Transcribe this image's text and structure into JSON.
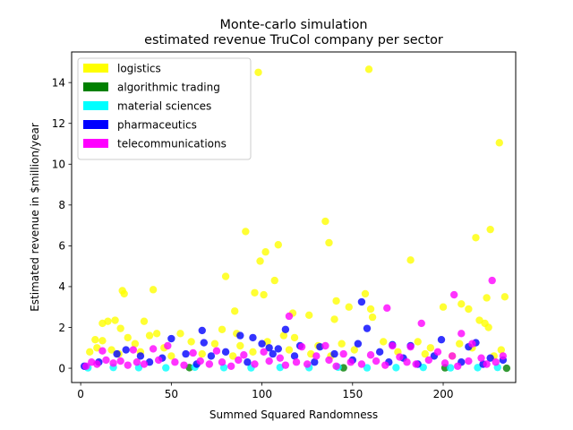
{
  "chart_data": {
    "type": "scatter",
    "title_line1": "Monte-carlo simulation",
    "title_line2": "estimated revenue TruCol company per sector",
    "xlabel": "Summed Squared Randomness",
    "ylabel": "Estimated revenue in $million/year",
    "xlim": [
      -5,
      240
    ],
    "ylim": [
      -0.7,
      15.5
    ],
    "xticks": [
      0,
      50,
      100,
      150,
      200
    ],
    "yticks": [
      0,
      2,
      4,
      6,
      8,
      10,
      12,
      14
    ],
    "legend_position": "upper left",
    "grid": false,
    "marker_alpha": 0.8,
    "series": [
      {
        "name": "logistics",
        "color": "#ffff00",
        "points": [
          [
            98,
            14.5
          ],
          [
            159,
            14.65
          ],
          [
            231,
            11.05
          ],
          [
            135,
            7.2
          ],
          [
            137,
            6.15
          ],
          [
            99,
            5.25
          ],
          [
            102,
            5.7
          ],
          [
            91,
            6.7
          ],
          [
            109,
            6.05
          ],
          [
            218,
            6.4
          ],
          [
            226,
            6.8
          ],
          [
            182,
            5.3
          ],
          [
            80,
            4.5
          ],
          [
            107,
            4.3
          ],
          [
            23,
            3.8
          ],
          [
            24,
            3.65
          ],
          [
            40,
            3.85
          ],
          [
            96,
            3.7
          ],
          [
            101,
            3.6
          ],
          [
            157,
            3.65
          ],
          [
            141,
            3.3
          ],
          [
            234,
            3.5
          ],
          [
            224,
            3.45
          ],
          [
            148,
            3.0
          ],
          [
            160,
            2.9
          ],
          [
            200,
            3.0
          ],
          [
            210,
            3.15
          ],
          [
            214,
            2.9
          ],
          [
            117,
            2.7
          ],
          [
            126,
            2.6
          ],
          [
            161,
            2.5
          ],
          [
            140,
            2.4
          ],
          [
            220,
            2.35
          ],
          [
            223,
            2.2
          ],
          [
            225,
            2.0
          ],
          [
            12,
            2.2
          ],
          [
            15,
            2.3
          ],
          [
            19,
            2.35
          ],
          [
            22,
            1.95
          ],
          [
            35,
            2.3
          ],
          [
            38,
            1.6
          ],
          [
            42,
            1.7
          ],
          [
            85,
            2.8
          ],
          [
            78,
            1.9
          ],
          [
            86,
            1.7
          ],
          [
            112,
            1.6
          ],
          [
            118,
            1.5
          ],
          [
            8,
            1.4
          ],
          [
            12,
            1.35
          ],
          [
            26,
            1.5
          ],
          [
            30,
            1.2
          ],
          [
            46,
            1.0
          ],
          [
            55,
            1.7
          ],
          [
            61,
            1.3
          ],
          [
            74,
            1.2
          ],
          [
            88,
            1.1
          ],
          [
            103,
            1.3
          ],
          [
            131,
            1.1
          ],
          [
            144,
            1.2
          ],
          [
            167,
            1.3
          ],
          [
            186,
            1.3
          ],
          [
            193,
            1.0
          ],
          [
            209,
            1.2
          ],
          [
            216,
            1.0
          ],
          [
            5,
            0.8
          ],
          [
            9,
            1.0
          ],
          [
            17,
            0.9
          ],
          [
            21,
            0.7
          ],
          [
            33,
            0.8
          ],
          [
            50,
            0.6
          ],
          [
            67,
            0.7
          ],
          [
            84,
            0.6
          ],
          [
            95,
            0.8
          ],
          [
            115,
            0.9
          ],
          [
            127,
            0.7
          ],
          [
            138,
            0.6
          ],
          [
            151,
            0.9
          ],
          [
            175,
            0.8
          ],
          [
            190,
            0.7
          ],
          [
            205,
            0.6
          ],
          [
            228,
            0.6
          ],
          [
            232,
            0.9
          ]
        ]
      },
      {
        "name": "algorithmic trading",
        "color": "#008000",
        "points": [
          [
            235,
            0.0
          ],
          [
            60,
            0.03
          ],
          [
            145,
            0.02
          ],
          [
            201,
            0.02
          ]
        ]
      },
      {
        "name": "material sciences",
        "color": "#00ffff",
        "points": [
          [
            4,
            0.02
          ],
          [
            18,
            0.04
          ],
          [
            32,
            0.03
          ],
          [
            47,
            0.02
          ],
          [
            63,
            0.05
          ],
          [
            79,
            0.03
          ],
          [
            94,
            0.02
          ],
          [
            110,
            0.04
          ],
          [
            126,
            0.03
          ],
          [
            142,
            0.05
          ],
          [
            158,
            0.02
          ],
          [
            174,
            0.03
          ],
          [
            189,
            0.04
          ],
          [
            204,
            0.02
          ],
          [
            219,
            0.03
          ],
          [
            230,
            0.04
          ]
        ]
      },
      {
        "name": "pharmaceutics",
        "color": "#0000ff",
        "points": [
          [
            155,
            3.25
          ],
          [
            158,
            1.95
          ],
          [
            113,
            1.9
          ],
          [
            67,
            1.85
          ],
          [
            88,
            1.6
          ],
          [
            95,
            1.5
          ],
          [
            50,
            1.45
          ],
          [
            68,
            1.25
          ],
          [
            100,
            1.2
          ],
          [
            104,
            1.0
          ],
          [
            109,
            0.95
          ],
          [
            121,
            1.1
          ],
          [
            132,
            1.05
          ],
          [
            153,
            1.2
          ],
          [
            172,
            1.15
          ],
          [
            182,
            1.1
          ],
          [
            199,
            1.4
          ],
          [
            214,
            1.05
          ],
          [
            218,
            1.25
          ],
          [
            20,
            0.7
          ],
          [
            25,
            0.9
          ],
          [
            33,
            0.6
          ],
          [
            45,
            0.5
          ],
          [
            58,
            0.7
          ],
          [
            72,
            0.6
          ],
          [
            80,
            0.8
          ],
          [
            106,
            0.7
          ],
          [
            118,
            0.6
          ],
          [
            140,
            0.7
          ],
          [
            165,
            0.8
          ],
          [
            178,
            0.5
          ],
          [
            195,
            0.6
          ],
          [
            226,
            0.5
          ],
          [
            233,
            0.4
          ],
          [
            2,
            0.1
          ],
          [
            10,
            0.3
          ],
          [
            38,
            0.3
          ],
          [
            64,
            0.2
          ],
          [
            92,
            0.3
          ],
          [
            129,
            0.3
          ],
          [
            150,
            0.4
          ],
          [
            170,
            0.3
          ],
          [
            186,
            0.2
          ],
          [
            210,
            0.3
          ],
          [
            222,
            0.2
          ]
        ]
      },
      {
        "name": "telecommunications",
        "color": "#ff00ff",
        "points": [
          [
            227,
            4.3
          ],
          [
            206,
            3.6
          ],
          [
            169,
            2.95
          ],
          [
            115,
            2.55
          ],
          [
            188,
            2.2
          ],
          [
            210,
            1.7
          ],
          [
            182,
            1.05
          ],
          [
            216,
            1.2
          ],
          [
            122,
            1.05
          ],
          [
            135,
            1.1
          ],
          [
            172,
            1.1
          ],
          [
            12,
            0.85
          ],
          [
            29,
            0.9
          ],
          [
            40,
            0.95
          ],
          [
            48,
            1.1
          ],
          [
            62,
            0.75
          ],
          [
            75,
            0.85
          ],
          [
            90,
            0.65
          ],
          [
            101,
            0.8
          ],
          [
            110,
            0.5
          ],
          [
            130,
            0.6
          ],
          [
            145,
            0.7
          ],
          [
            160,
            0.65
          ],
          [
            176,
            0.55
          ],
          [
            197,
            0.8
          ],
          [
            205,
            0.6
          ],
          [
            221,
            0.5
          ],
          [
            233,
            0.6
          ],
          [
            3,
            0.1
          ],
          [
            6,
            0.3
          ],
          [
            9,
            0.2
          ],
          [
            14,
            0.4
          ],
          [
            18,
            0.25
          ],
          [
            22,
            0.35
          ],
          [
            26,
            0.15
          ],
          [
            31,
            0.3
          ],
          [
            35,
            0.2
          ],
          [
            43,
            0.4
          ],
          [
            52,
            0.3
          ],
          [
            57,
            0.15
          ],
          [
            66,
            0.35
          ],
          [
            71,
            0.2
          ],
          [
            78,
            0.3
          ],
          [
            83,
            0.1
          ],
          [
            87,
            0.4
          ],
          [
            96,
            0.2
          ],
          [
            104,
            0.35
          ],
          [
            113,
            0.15
          ],
          [
            119,
            0.3
          ],
          [
            125,
            0.2
          ],
          [
            137,
            0.4
          ],
          [
            141,
            0.1
          ],
          [
            149,
            0.3
          ],
          [
            155,
            0.2
          ],
          [
            163,
            0.35
          ],
          [
            168,
            0.15
          ],
          [
            180,
            0.3
          ],
          [
            185,
            0.2
          ],
          [
            192,
            0.4
          ],
          [
            201,
            0.25
          ],
          [
            208,
            0.1
          ],
          [
            214,
            0.35
          ],
          [
            224,
            0.2
          ],
          [
            229,
            0.3
          ]
        ]
      }
    ]
  }
}
